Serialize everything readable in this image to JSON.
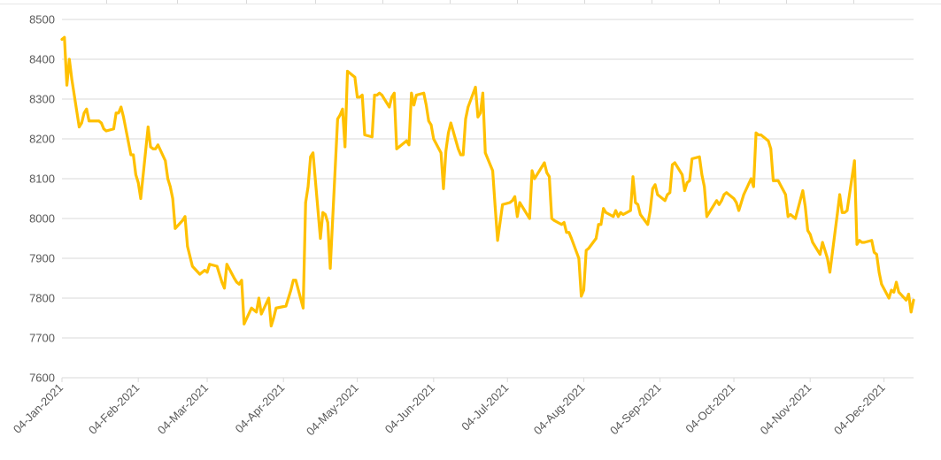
{
  "chart_data": {
    "type": "line",
    "title": "",
    "xlabel": "",
    "ylabel": "",
    "ylim": [
      7600,
      8500
    ],
    "yticks": [
      7600,
      7700,
      7800,
      7900,
      8000,
      8100,
      8200,
      8300,
      8400,
      8500
    ],
    "grid": true,
    "legend": "none",
    "line_color": "#ffc000",
    "x_tick_labels": [
      "04-Jan-2021",
      "04-Feb-2021",
      "04-Mar-2021",
      "04-Apr-2021",
      "04-May-2021",
      "04-Jun-2021",
      "04-Jul-2021",
      "04-Aug-2021",
      "04-Sep-2021",
      "04-Oct-2021",
      "04-Nov-2021",
      "04-Dec-2021"
    ],
    "series": [
      {
        "values": [
          [
            "2021-01-04",
            8450
          ],
          [
            "2021-01-05",
            8455
          ],
          [
            "2021-01-06",
            8335
          ],
          [
            "2021-01-07",
            8400
          ],
          [
            "2021-01-08",
            8350
          ],
          [
            "2021-01-11",
            8230
          ],
          [
            "2021-01-12",
            8240
          ],
          [
            "2021-01-13",
            8265
          ],
          [
            "2021-01-14",
            8275
          ],
          [
            "2021-01-15",
            8245
          ],
          [
            "2021-01-18",
            8245
          ],
          [
            "2021-01-19",
            8245
          ],
          [
            "2021-01-20",
            8240
          ],
          [
            "2021-01-21",
            8225
          ],
          [
            "2021-01-22",
            8220
          ],
          [
            "2021-01-25",
            8225
          ],
          [
            "2021-01-26",
            8265
          ],
          [
            "2021-01-27",
            8265
          ],
          [
            "2021-01-28",
            8280
          ],
          [
            "2021-01-29",
            8255
          ],
          [
            "2021-02-01",
            8160
          ],
          [
            "2021-02-02",
            8160
          ],
          [
            "2021-02-03",
            8110
          ],
          [
            "2021-02-04",
            8090
          ],
          [
            "2021-02-05",
            8050
          ],
          [
            "2021-02-08",
            8230
          ],
          [
            "2021-02-09",
            8180
          ],
          [
            "2021-02-10",
            8175
          ],
          [
            "2021-02-11",
            8175
          ],
          [
            "2021-02-12",
            8185
          ],
          [
            "2021-02-15",
            8145
          ],
          [
            "2021-02-16",
            8100
          ],
          [
            "2021-02-17",
            8080
          ],
          [
            "2021-02-18",
            8050
          ],
          [
            "2021-02-19",
            7975
          ],
          [
            "2021-02-22",
            7995
          ],
          [
            "2021-02-23",
            8005
          ],
          [
            "2021-02-24",
            7930
          ],
          [
            "2021-02-25",
            7905
          ],
          [
            "2021-02-26",
            7880
          ],
          [
            "2021-03-01",
            7860
          ],
          [
            "2021-03-02",
            7865
          ],
          [
            "2021-03-03",
            7870
          ],
          [
            "2021-03-04",
            7865
          ],
          [
            "2021-03-05",
            7885
          ],
          [
            "2021-03-08",
            7880
          ],
          [
            "2021-03-09",
            7860
          ],
          [
            "2021-03-10",
            7840
          ],
          [
            "2021-03-11",
            7825
          ],
          [
            "2021-03-12",
            7885
          ],
          [
            "2021-03-15",
            7850
          ],
          [
            "2021-03-16",
            7840
          ],
          [
            "2021-03-17",
            7835
          ],
          [
            "2021-03-18",
            7845
          ],
          [
            "2021-03-19",
            7735
          ],
          [
            "2021-03-22",
            7775
          ],
          [
            "2021-03-23",
            7770
          ],
          [
            "2021-03-24",
            7765
          ],
          [
            "2021-03-25",
            7800
          ],
          [
            "2021-03-26",
            7760
          ],
          [
            "2021-03-29",
            7800
          ],
          [
            "2021-03-30",
            7730
          ],
          [
            "2021-03-31",
            7750
          ],
          [
            "2021-04-01",
            7775
          ],
          [
            "2021-04-05",
            7780
          ],
          [
            "2021-04-06",
            7800
          ],
          [
            "2021-04-07",
            7820
          ],
          [
            "2021-04-08",
            7845
          ],
          [
            "2021-04-09",
            7845
          ],
          [
            "2021-04-12",
            7775
          ],
          [
            "2021-04-13",
            8040
          ],
          [
            "2021-04-14",
            8080
          ],
          [
            "2021-04-15",
            8155
          ],
          [
            "2021-04-16",
            8165
          ],
          [
            "2021-04-19",
            7950
          ],
          [
            "2021-04-20",
            8015
          ],
          [
            "2021-04-21",
            8010
          ],
          [
            "2021-04-22",
            7990
          ],
          [
            "2021-04-23",
            7875
          ],
          [
            "2021-04-26",
            8250
          ],
          [
            "2021-04-27",
            8260
          ],
          [
            "2021-04-28",
            8275
          ],
          [
            "2021-04-29",
            8180
          ],
          [
            "2021-04-30",
            8370
          ],
          [
            "2021-05-03",
            8355
          ],
          [
            "2021-05-04",
            8305
          ],
          [
            "2021-05-05",
            8305
          ],
          [
            "2021-05-06",
            8310
          ],
          [
            "2021-05-07",
            8210
          ],
          [
            "2021-05-10",
            8205
          ],
          [
            "2021-05-11",
            8310
          ],
          [
            "2021-05-12",
            8310
          ],
          [
            "2021-05-13",
            8315
          ],
          [
            "2021-05-14",
            8310
          ],
          [
            "2021-05-17",
            8280
          ],
          [
            "2021-05-18",
            8305
          ],
          [
            "2021-05-19",
            8315
          ],
          [
            "2021-05-20",
            8175
          ],
          [
            "2021-05-21",
            8180
          ],
          [
            "2021-05-24",
            8195
          ],
          [
            "2021-05-25",
            8185
          ],
          [
            "2021-05-26",
            8315
          ],
          [
            "2021-05-27",
            8285
          ],
          [
            "2021-05-28",
            8310
          ],
          [
            "2021-05-31",
            8315
          ],
          [
            "2021-06-01",
            8285
          ],
          [
            "2021-06-02",
            8245
          ],
          [
            "2021-06-03",
            8235
          ],
          [
            "2021-06-04",
            8200
          ],
          [
            "2021-06-07",
            8165
          ],
          [
            "2021-06-08",
            8075
          ],
          [
            "2021-06-09",
            8170
          ],
          [
            "2021-06-10",
            8215
          ],
          [
            "2021-06-11",
            8240
          ],
          [
            "2021-06-14",
            8175
          ],
          [
            "2021-06-15",
            8160
          ],
          [
            "2021-06-16",
            8160
          ],
          [
            "2021-06-17",
            8250
          ],
          [
            "2021-06-18",
            8280
          ],
          [
            "2021-06-21",
            8330
          ],
          [
            "2021-06-22",
            8255
          ],
          [
            "2021-06-23",
            8265
          ],
          [
            "2021-06-24",
            8315
          ],
          [
            "2021-06-25",
            8165
          ],
          [
            "2021-06-28",
            8120
          ],
          [
            "2021-06-29",
            8030
          ],
          [
            "2021-06-30",
            7945
          ],
          [
            "2021-07-01",
            7990
          ],
          [
            "2021-07-02",
            8035
          ],
          [
            "2021-07-05",
            8040
          ],
          [
            "2021-07-06",
            8045
          ],
          [
            "2021-07-07",
            8055
          ],
          [
            "2021-07-08",
            8005
          ],
          [
            "2021-07-09",
            8040
          ],
          [
            "2021-07-12",
            8010
          ],
          [
            "2021-07-13",
            8000
          ],
          [
            "2021-07-14",
            8120
          ],
          [
            "2021-07-15",
            8100
          ],
          [
            "2021-07-16",
            8110
          ],
          [
            "2021-07-19",
            8140
          ],
          [
            "2021-07-20",
            8115
          ],
          [
            "2021-07-21",
            8105
          ],
          [
            "2021-07-22",
            8000
          ],
          [
            "2021-07-23",
            7995
          ],
          [
            "2021-07-26",
            7985
          ],
          [
            "2021-07-27",
            7990
          ],
          [
            "2021-07-28",
            7965
          ],
          [
            "2021-07-29",
            7965
          ],
          [
            "2021-07-30",
            7950
          ],
          [
            "2021-08-02",
            7900
          ],
          [
            "2021-08-03",
            7805
          ],
          [
            "2021-08-04",
            7820
          ],
          [
            "2021-08-05",
            7920
          ],
          [
            "2021-08-06",
            7925
          ],
          [
            "2021-08-09",
            7950
          ],
          [
            "2021-08-10",
            7985
          ],
          [
            "2021-08-11",
            7985
          ],
          [
            "2021-08-12",
            8025
          ],
          [
            "2021-08-13",
            8015
          ],
          [
            "2021-08-16",
            8005
          ],
          [
            "2021-08-17",
            8020
          ],
          [
            "2021-08-18",
            8005
          ],
          [
            "2021-08-19",
            8015
          ],
          [
            "2021-08-20",
            8010
          ],
          [
            "2021-08-23",
            8020
          ],
          [
            "2021-08-24",
            8105
          ],
          [
            "2021-08-25",
            8040
          ],
          [
            "2021-08-26",
            8035
          ],
          [
            "2021-08-27",
            8010
          ],
          [
            "2021-08-30",
            7985
          ],
          [
            "2021-08-31",
            8020
          ],
          [
            "2021-09-01",
            8075
          ],
          [
            "2021-09-02",
            8085
          ],
          [
            "2021-09-03",
            8060
          ],
          [
            "2021-09-06",
            8045
          ],
          [
            "2021-09-07",
            8060
          ],
          [
            "2021-09-08",
            8065
          ],
          [
            "2021-09-09",
            8135
          ],
          [
            "2021-09-10",
            8140
          ],
          [
            "2021-09-13",
            8110
          ],
          [
            "2021-09-14",
            8070
          ],
          [
            "2021-09-15",
            8090
          ],
          [
            "2021-09-16",
            8095
          ],
          [
            "2021-09-17",
            8150
          ],
          [
            "2021-09-20",
            8155
          ],
          [
            "2021-09-21",
            8110
          ],
          [
            "2021-09-22",
            8080
          ],
          [
            "2021-09-23",
            8005
          ],
          [
            "2021-09-24",
            8015
          ],
          [
            "2021-09-27",
            8045
          ],
          [
            "2021-09-28",
            8035
          ],
          [
            "2021-09-29",
            8045
          ],
          [
            "2021-09-30",
            8060
          ],
          [
            "2021-10-01",
            8065
          ],
          [
            "2021-10-04",
            8050
          ],
          [
            "2021-10-05",
            8040
          ],
          [
            "2021-10-06",
            8020
          ],
          [
            "2021-10-07",
            8040
          ],
          [
            "2021-10-08",
            8060
          ],
          [
            "2021-10-11",
            8100
          ],
          [
            "2021-10-12",
            8080
          ],
          [
            "2021-10-13",
            8215
          ],
          [
            "2021-10-14",
            8210
          ],
          [
            "2021-10-15",
            8210
          ],
          [
            "2021-10-18",
            8195
          ],
          [
            "2021-10-19",
            8175
          ],
          [
            "2021-10-20",
            8095
          ],
          [
            "2021-10-21",
            8095
          ],
          [
            "2021-10-22",
            8095
          ],
          [
            "2021-10-25",
            8060
          ],
          [
            "2021-10-26",
            8005
          ],
          [
            "2021-10-27",
            8010
          ],
          [
            "2021-10-28",
            8005
          ],
          [
            "2021-10-29",
            8000
          ],
          [
            "2021-11-01",
            8070
          ],
          [
            "2021-11-02",
            8030
          ],
          [
            "2021-11-03",
            7970
          ],
          [
            "2021-11-04",
            7960
          ],
          [
            "2021-11-05",
            7940
          ],
          [
            "2021-11-08",
            7910
          ],
          [
            "2021-11-09",
            7940
          ],
          [
            "2021-11-10",
            7920
          ],
          [
            "2021-11-11",
            7900
          ],
          [
            "2021-11-12",
            7865
          ],
          [
            "2021-11-15",
            8010
          ],
          [
            "2021-11-16",
            8060
          ],
          [
            "2021-11-17",
            8015
          ],
          [
            "2021-11-18",
            8015
          ],
          [
            "2021-11-19",
            8020
          ],
          [
            "2021-11-22",
            8145
          ],
          [
            "2021-11-23",
            7935
          ],
          [
            "2021-11-24",
            7945
          ],
          [
            "2021-11-25",
            7940
          ],
          [
            "2021-11-26",
            7940
          ],
          [
            "2021-11-29",
            7945
          ],
          [
            "2021-11-30",
            7915
          ],
          [
            "2021-12-01",
            7910
          ],
          [
            "2021-12-02",
            7865
          ],
          [
            "2021-12-03",
            7835
          ],
          [
            "2021-12-06",
            7800
          ],
          [
            "2021-12-07",
            7820
          ],
          [
            "2021-12-08",
            7815
          ],
          [
            "2021-12-09",
            7840
          ],
          [
            "2021-12-10",
            7815
          ],
          [
            "2021-12-13",
            7795
          ],
          [
            "2021-12-14",
            7810
          ],
          [
            "2021-12-15",
            7765
          ],
          [
            "2021-12-16",
            7795
          ]
        ]
      }
    ]
  }
}
